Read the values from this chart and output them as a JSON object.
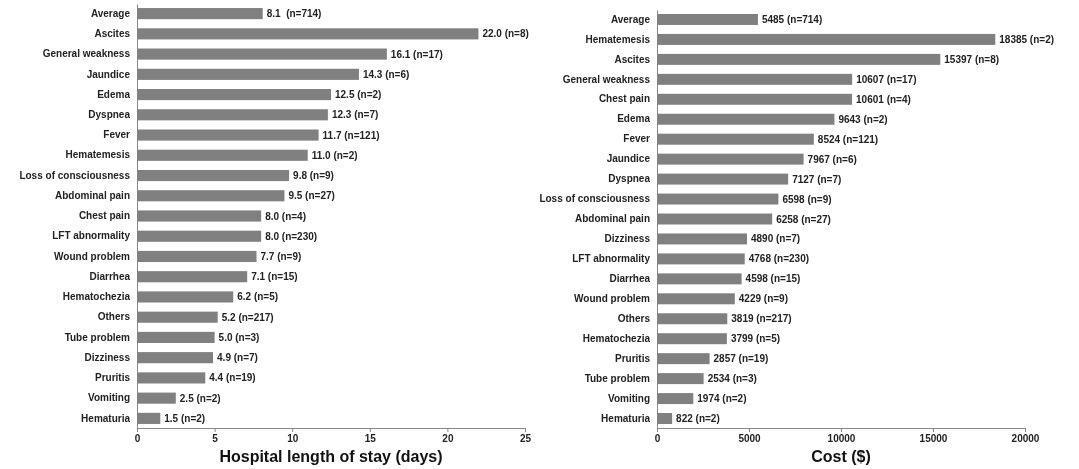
{
  "chart_data": [
    {
      "type": "bar",
      "orientation": "horizontal",
      "xlabel": "Hospital length of stay (days)",
      "color": "#808080",
      "xlim": [
        0,
        25
      ],
      "xticks": [
        0,
        5,
        10,
        15,
        20,
        25
      ],
      "categories": [
        "Average",
        "Ascites",
        "General weakness",
        "Jaundice",
        "Edema",
        "Dyspnea",
        "Fever",
        "Hematemesis",
        "Loss of consciousness",
        "Abdominal pain",
        "Chest pain",
        "LFT abnormality",
        "Wound problem",
        "Diarrhea",
        "Hematochezia",
        "Others",
        "Tube problem",
        "Dizziness",
        "Pruritis",
        "Vomiting",
        "Hematuria"
      ],
      "values": [
        8.1,
        22.0,
        16.1,
        14.3,
        12.5,
        12.3,
        11.7,
        11.0,
        9.8,
        9.5,
        8.0,
        8.0,
        7.7,
        7.1,
        6.2,
        5.2,
        5.0,
        4.9,
        4.4,
        2.5,
        1.5
      ],
      "value_labels": [
        "8.1  (n=714)",
        "22.0 (n=8)",
        "16.1 (n=17)",
        "14.3 (n=6)",
        "12.5 (n=2)",
        "12.3 (n=7)",
        "11.7 (n=121)",
        "11.0 (n=2)",
        "9.8 (n=9)",
        "9.5 (n=27)",
        "8.0 (n=4)",
        "8.0 (n=230)",
        "7.7 (n=9)",
        "7.1 (n=15)",
        "6.2 (n=5)",
        "5.2 (n=217)",
        "5.0 (n=3)",
        "4.9 (n=7)",
        "4.4 (n=19)",
        "2.5 (n=2)",
        "1.5 (n=2)"
      ]
    },
    {
      "type": "bar",
      "orientation": "horizontal",
      "xlabel": "Cost ($)",
      "color": "#808080",
      "xlim": [
        0,
        20000
      ],
      "xticks": [
        0,
        5000,
        10000,
        15000,
        20000
      ],
      "categories": [
        "Average",
        "Hematemesis",
        "Ascites",
        "General weakness",
        "Chest pain",
        "Edema",
        "Fever",
        "Jaundice",
        "Dyspnea",
        "Loss of consciousness",
        "Abdominal pain",
        "Dizziness",
        "LFT abnormality",
        "Diarrhea",
        "Wound problem",
        "Others",
        "Hematochezia",
        "Pruritis",
        "Tube problem",
        "Vomiting",
        "Hematuria"
      ],
      "values": [
        5485,
        18385,
        15397,
        10607,
        10601,
        9643,
        8524,
        7967,
        7127,
        6598,
        6258,
        4890,
        4768,
        4598,
        4229,
        3819,
        3799,
        2857,
        2534,
        1974,
        822
      ],
      "value_labels": [
        "5485 (n=714)",
        "18385 (n=2)",
        "15397 (n=8)",
        "10607 (n=17)",
        "10601 (n=4)",
        "9643 (n=2)",
        "8524 (n=121)",
        "7967 (n=6)",
        "7127 (n=7)",
        "6598 (n=9)",
        "6258 (n=27)",
        "4890 (n=7)",
        "4768 (n=230)",
        "4598 (n=15)",
        "4229 (n=9)",
        "3819 (n=217)",
        "3799 (n=5)",
        "2857 (n=19)",
        "2534 (n=3)",
        "1974 (n=2)",
        "822 (n=2)"
      ]
    }
  ]
}
